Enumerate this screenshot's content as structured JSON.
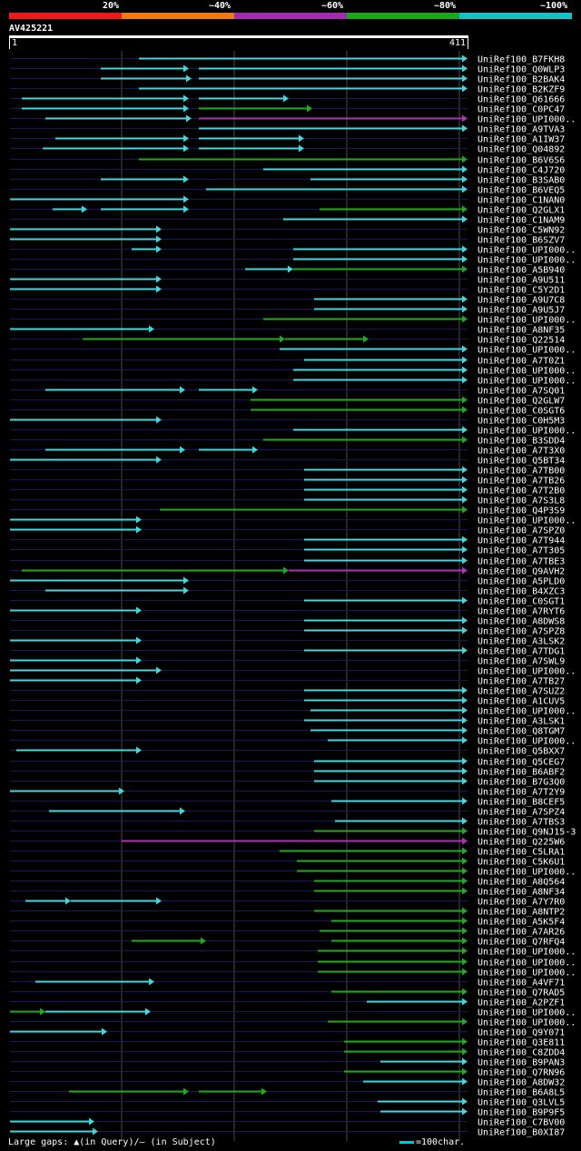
{
  "legend": {
    "segments": [
      {
        "label": "20%",
        "color": "#ee1a1a"
      },
      {
        "label": "~40%",
        "color": "#ee7a12"
      },
      {
        "label": "~60%",
        "color": "#a22bb0"
      },
      {
        "label": "~80%",
        "color": "#1aa81a"
      },
      {
        "label": "~100%",
        "color": "#18c0c8"
      }
    ]
  },
  "query": {
    "id": "AV425221",
    "start": "1",
    "end": "411"
  },
  "colors": {
    "cyan": "#40d8e0",
    "green": "#1faa1f",
    "purple": "#b030b8",
    "track": "#141a5c",
    "grid": "#4a4a4a"
  },
  "hits": [
    {
      "name": "UniRef100_B7FKH8",
      "segs": [
        [
          153,
          515,
          "c"
        ]
      ]
    },
    {
      "name": "UniRef100_Q0WLP3",
      "segs": [
        [
          111,
          208,
          "c"
        ],
        [
          219,
          515,
          "c"
        ]
      ]
    },
    {
      "name": "UniRef100_B2BAK4",
      "segs": [
        [
          111,
          211,
          "c"
        ],
        [
          219,
          515,
          "c"
        ]
      ]
    },
    {
      "name": "UniRef100_B2KZF9",
      "segs": [
        [
          153,
          515,
          "c"
        ]
      ]
    },
    {
      "name": "UniRef100_Q61666",
      "segs": [
        [
          24,
          208,
          "c"
        ],
        [
          219,
          318,
          "c"
        ]
      ]
    },
    {
      "name": "UniRef100_C0PC47",
      "segs": [
        [
          24,
          208,
          "c"
        ],
        [
          219,
          344,
          "g"
        ]
      ]
    },
    {
      "name": "UniRef100_UPI000..",
      "segs": [
        [
          50,
          211,
          "c"
        ],
        [
          219,
          515,
          "p"
        ]
      ]
    },
    {
      "name": "UniRef100_A9TVA3",
      "segs": [
        [
          219,
          515,
          "c"
        ]
      ]
    },
    {
      "name": "UniRef100_A1IW37",
      "segs": [
        [
          61,
          208,
          "c"
        ],
        [
          219,
          335,
          "c"
        ]
      ]
    },
    {
      "name": "UniRef100_Q04892",
      "segs": [
        [
          47,
          208,
          "c"
        ],
        [
          219,
          335,
          "c"
        ]
      ]
    },
    {
      "name": "UniRef100_B6V6S6",
      "segs": [
        [
          153,
          515,
          "g"
        ]
      ]
    },
    {
      "name": "UniRef100_C4J720",
      "segs": [
        [
          290,
          515,
          "c"
        ]
      ]
    },
    {
      "name": "UniRef100_B3SAB0",
      "segs": [
        [
          111,
          208,
          "c"
        ],
        [
          342,
          515,
          "c"
        ]
      ]
    },
    {
      "name": "UniRef100_B6VEQ5",
      "segs": [
        [
          227,
          515,
          "c"
        ]
      ]
    },
    {
      "name": "UniRef100_C1NAN0",
      "segs": [
        [
          11,
          208,
          "c"
        ]
      ]
    },
    {
      "name": "UniRef100_Q2GLX1",
      "segs": [
        [
          58,
          96,
          "c"
        ],
        [
          111,
          208,
          "c"
        ],
        [
          352,
          515,
          "g"
        ]
      ]
    },
    {
      "name": "UniRef100_C1NAM9",
      "segs": [
        [
          312,
          515,
          "c"
        ]
      ]
    },
    {
      "name": "UniRef100_C5WN92",
      "segs": [
        [
          11,
          178,
          "c"
        ]
      ]
    },
    {
      "name": "UniRef100_B6SZV7",
      "segs": [
        [
          11,
          178,
          "c"
        ]
      ]
    },
    {
      "name": "UniRef100_UPI000..",
      "segs": [
        [
          145,
          178,
          "c"
        ],
        [
          323,
          515,
          "c"
        ]
      ]
    },
    {
      "name": "UniRef100_UPI000..",
      "segs": [
        [
          323,
          515,
          "c"
        ]
      ]
    },
    {
      "name": "UniRef100_A5B940",
      "segs": [
        [
          270,
          323,
          "c"
        ],
        [
          323,
          515,
          "g"
        ]
      ]
    },
    {
      "name": "UniRef100_A9U511",
      "segs": [
        [
          11,
          178,
          "c"
        ]
      ]
    },
    {
      "name": "UniRef100_C5Y2D1",
      "segs": [
        [
          11,
          178,
          "c"
        ]
      ]
    },
    {
      "name": "UniRef100_A9U7C8",
      "segs": [
        [
          346,
          515,
          "c"
        ]
      ]
    },
    {
      "name": "UniRef100_A9U5J7",
      "segs": [
        [
          346,
          515,
          "c"
        ]
      ]
    },
    {
      "name": "UniRef100_UPI000..",
      "segs": [
        [
          290,
          515,
          "g"
        ]
      ]
    },
    {
      "name": "UniRef100_A8NF35",
      "segs": [
        [
          11,
          170,
          "c"
        ]
      ]
    },
    {
      "name": "UniRef100_Q22514",
      "segs": [
        [
          91,
          314,
          "g"
        ],
        [
          314,
          406,
          "g"
        ]
      ]
    },
    {
      "name": "UniRef100_UPI000..",
      "segs": [
        [
          308,
          515,
          "c"
        ]
      ]
    },
    {
      "name": "UniRef100_A7T0Z1",
      "segs": [
        [
          335,
          515,
          "c"
        ]
      ]
    },
    {
      "name": "UniRef100_UPI000..",
      "segs": [
        [
          323,
          515,
          "c"
        ]
      ]
    },
    {
      "name": "UniRef100_UPI000..",
      "segs": [
        [
          323,
          515,
          "c"
        ]
      ]
    },
    {
      "name": "UniRef100_A7SQ01",
      "segs": [
        [
          50,
          204,
          "c"
        ],
        [
          219,
          284,
          "c"
        ]
      ]
    },
    {
      "name": "UniRef100_Q2GLW7",
      "segs": [
        [
          276,
          515,
          "g"
        ]
      ]
    },
    {
      "name": "UniRef100_C0SGT6",
      "segs": [
        [
          276,
          515,
          "g"
        ]
      ]
    },
    {
      "name": "UniRef100_C0H5M3",
      "segs": [
        [
          11,
          178,
          "c"
        ]
      ]
    },
    {
      "name": "UniRef100_UPI000..",
      "segs": [
        [
          323,
          515,
          "c"
        ]
      ]
    },
    {
      "name": "UniRef100_B3SDD4",
      "segs": [
        [
          290,
          515,
          "g"
        ]
      ]
    },
    {
      "name": "UniRef100_A7T3X0",
      "segs": [
        [
          50,
          204,
          "c"
        ],
        [
          219,
          284,
          "c"
        ]
      ]
    },
    {
      "name": "UniRef100_Q5BT34",
      "segs": [
        [
          11,
          178,
          "c"
        ]
      ]
    },
    {
      "name": "UniRef100_A7TB00",
      "segs": [
        [
          335,
          515,
          "c"
        ]
      ]
    },
    {
      "name": "UniRef100_A7TB26",
      "segs": [
        [
          335,
          515,
          "c"
        ]
      ]
    },
    {
      "name": "UniRef100_A7T2B0",
      "segs": [
        [
          335,
          515,
          "c"
        ]
      ]
    },
    {
      "name": "UniRef100_A7S3L8",
      "segs": [
        [
          335,
          515,
          "c"
        ]
      ]
    },
    {
      "name": "UniRef100_Q4P3S9",
      "segs": [
        [
          176,
          515,
          "g"
        ]
      ]
    },
    {
      "name": "UniRef100_UPI000..",
      "segs": [
        [
          11,
          156,
          "c"
        ]
      ]
    },
    {
      "name": "UniRef100_A7SPZ0",
      "segs": [
        [
          11,
          156,
          "c"
        ]
      ]
    },
    {
      "name": "UniRef100_A7T944",
      "segs": [
        [
          335,
          515,
          "c"
        ]
      ]
    },
    {
      "name": "UniRef100_A7T305",
      "segs": [
        [
          335,
          515,
          "c"
        ]
      ]
    },
    {
      "name": "UniRef100_A7TBE3",
      "segs": [
        [
          335,
          515,
          "c"
        ]
      ]
    },
    {
      "name": "UniRef100_Q9AVH2",
      "segs": [
        [
          24,
          318,
          "g"
        ],
        [
          318,
          515,
          "p"
        ]
      ]
    },
    {
      "name": "UniRef100_A5PLD0",
      "segs": [
        [
          11,
          208,
          "c"
        ]
      ]
    },
    {
      "name": "UniRef100_B4XZC3",
      "segs": [
        [
          50,
          208,
          "c"
        ]
      ]
    },
    {
      "name": "UniRef100_C0SGT1",
      "segs": [
        [
          335,
          515,
          "c"
        ]
      ]
    },
    {
      "name": "UniRef100_A7RYT6",
      "segs": [
        [
          11,
          156,
          "c"
        ]
      ]
    },
    {
      "name": "UniRef100_A8DWS8",
      "segs": [
        [
          335,
          515,
          "c"
        ]
      ]
    },
    {
      "name": "UniRef100_A7SPZ8",
      "segs": [
        [
          335,
          515,
          "c"
        ]
      ]
    },
    {
      "name": "UniRef100_A3LSK2",
      "segs": [
        [
          11,
          156,
          "c"
        ]
      ]
    },
    {
      "name": "UniRef100_A7TDG1",
      "segs": [
        [
          335,
          515,
          "c"
        ]
      ]
    },
    {
      "name": "UniRef100_A7SWL9",
      "segs": [
        [
          11,
          156,
          "c"
        ]
      ]
    },
    {
      "name": "UniRef100_UPI000..",
      "segs": [
        [
          11,
          178,
          "c"
        ]
      ]
    },
    {
      "name": "UniRef100_A7TB27",
      "segs": [
        [
          11,
          156,
          "c"
        ]
      ]
    },
    {
      "name": "UniRef100_A7SUZ2",
      "segs": [
        [
          335,
          515,
          "c"
        ]
      ]
    },
    {
      "name": "UniRef100_A1CUV5",
      "segs": [
        [
          335,
          515,
          "c"
        ]
      ]
    },
    {
      "name": "UniRef100_UPI000..",
      "segs": [
        [
          342,
          515,
          "c"
        ]
      ]
    },
    {
      "name": "UniRef100_A3LSK1",
      "segs": [
        [
          335,
          515,
          "c"
        ]
      ]
    },
    {
      "name": "UniRef100_Q8TGM7",
      "segs": [
        [
          342,
          515,
          "c"
        ]
      ]
    },
    {
      "name": "UniRef100_UPI000..",
      "segs": [
        [
          361,
          515,
          "c"
        ]
      ]
    },
    {
      "name": "UniRef100_Q5BXX7",
      "segs": [
        [
          18,
          156,
          "c"
        ]
      ]
    },
    {
      "name": "UniRef100_Q5CEG7",
      "segs": [
        [
          346,
          515,
          "c"
        ]
      ]
    },
    {
      "name": "UniRef100_B6ABF2",
      "segs": [
        [
          346,
          515,
          "c"
        ]
      ]
    },
    {
      "name": "UniRef100_B7G3Q0",
      "segs": [
        [
          346,
          515,
          "c"
        ]
      ]
    },
    {
      "name": "UniRef100_A7T2Y9",
      "segs": [
        [
          11,
          137,
          "c"
        ]
      ]
    },
    {
      "name": "UniRef100_B8CEF5",
      "segs": [
        [
          365,
          515,
          "c"
        ]
      ]
    },
    {
      "name": "UniRef100_A7SPZ4",
      "segs": [
        [
          54,
          204,
          "c"
        ]
      ]
    },
    {
      "name": "UniRef100_A7TBS3",
      "segs": [
        [
          369,
          515,
          "c"
        ]
      ]
    },
    {
      "name": "UniRef100_Q9NJ15-3",
      "segs": [
        [
          346,
          515,
          "g"
        ]
      ]
    },
    {
      "name": "UniRef100_Q225W6",
      "segs": [
        [
          134,
          515,
          "p"
        ]
      ]
    },
    {
      "name": "UniRef100_C5LRA1",
      "segs": [
        [
          308,
          515,
          "g"
        ]
      ]
    },
    {
      "name": "UniRef100_C5K6U1",
      "segs": [
        [
          327,
          515,
          "g"
        ]
      ]
    },
    {
      "name": "UniRef100_UPI000..",
      "segs": [
        [
          327,
          515,
          "g"
        ]
      ]
    },
    {
      "name": "UniRef100_A8Q564",
      "segs": [
        [
          346,
          515,
          "g"
        ]
      ]
    },
    {
      "name": "UniRef100_A8NF34",
      "segs": [
        [
          346,
          515,
          "g"
        ]
      ]
    },
    {
      "name": "UniRef100_A7Y7R0",
      "segs": [
        [
          28,
          78,
          "c"
        ],
        [
          78,
          178,
          "c"
        ]
      ]
    },
    {
      "name": "UniRef100_A8NTP2",
      "segs": [
        [
          346,
          515,
          "g"
        ]
      ]
    },
    {
      "name": "UniRef100_A5K5F4",
      "segs": [
        [
          365,
          515,
          "g"
        ]
      ]
    },
    {
      "name": "UniRef100_A7AR26",
      "segs": [
        [
          352,
          515,
          "g"
        ]
      ]
    },
    {
      "name": "UniRef100_Q7RFQ4",
      "segs": [
        [
          145,
          227,
          "g"
        ],
        [
          365,
          515,
          "g"
        ]
      ]
    },
    {
      "name": "UniRef100_UPI000..",
      "segs": [
        [
          350,
          515,
          "g"
        ]
      ]
    },
    {
      "name": "UniRef100_UPI000..",
      "segs": [
        [
          350,
          515,
          "g"
        ]
      ]
    },
    {
      "name": "UniRef100_UPI000..",
      "segs": [
        [
          350,
          515,
          "g"
        ]
      ]
    },
    {
      "name": "UniRef100_A4VF71",
      "segs": [
        [
          39,
          170,
          "c"
        ]
      ]
    },
    {
      "name": "UniRef100_Q7RAD5",
      "segs": [
        [
          365,
          515,
          "g"
        ]
      ]
    },
    {
      "name": "UniRef100_A2PZF1",
      "segs": [
        [
          404,
          515,
          "c"
        ]
      ]
    },
    {
      "name": "UniRef100_UPI000..",
      "segs": [
        [
          11,
          50,
          "g"
        ],
        [
          50,
          166,
          "c"
        ]
      ]
    },
    {
      "name": "UniRef100_UPI000..",
      "segs": [
        [
          361,
          515,
          "g"
        ]
      ]
    },
    {
      "name": "UniRef100_Q9Y071",
      "segs": [
        [
          11,
          118,
          "c"
        ]
      ]
    },
    {
      "name": "UniRef100_Q3E811",
      "segs": [
        [
          379,
          515,
          "g"
        ]
      ]
    },
    {
      "name": "UniRef100_C8ZDD4",
      "segs": [
        [
          379,
          515,
          "g"
        ]
      ]
    },
    {
      "name": "UniRef100_B9PAN3",
      "segs": [
        [
          419,
          515,
          "c"
        ]
      ]
    },
    {
      "name": "UniRef100_Q7RN96",
      "segs": [
        [
          379,
          515,
          "g"
        ]
      ]
    },
    {
      "name": "UniRef100_A8DW32",
      "segs": [
        [
          400,
          515,
          "c"
        ]
      ]
    },
    {
      "name": "UniRef100_B6A8L5",
      "segs": [
        [
          76,
          208,
          "g"
        ],
        [
          219,
          294,
          "g"
        ]
      ]
    },
    {
      "name": "UniRef100_Q3LVL5",
      "segs": [
        [
          416,
          515,
          "c"
        ]
      ]
    },
    {
      "name": "UniRef100_B9P9F5",
      "segs": [
        [
          419,
          515,
          "c"
        ]
      ]
    },
    {
      "name": "UniRef100_C7BV00",
      "segs": [
        [
          11,
          104,
          "c"
        ]
      ]
    },
    {
      "name": "UniRef100_B0XI87",
      "segs": [
        [
          11,
          108,
          "c"
        ]
      ]
    }
  ],
  "footer": {
    "gaps_text": "Large gaps: ▲(in Query)/— (in Subject)",
    "scale_text": "=100char."
  }
}
